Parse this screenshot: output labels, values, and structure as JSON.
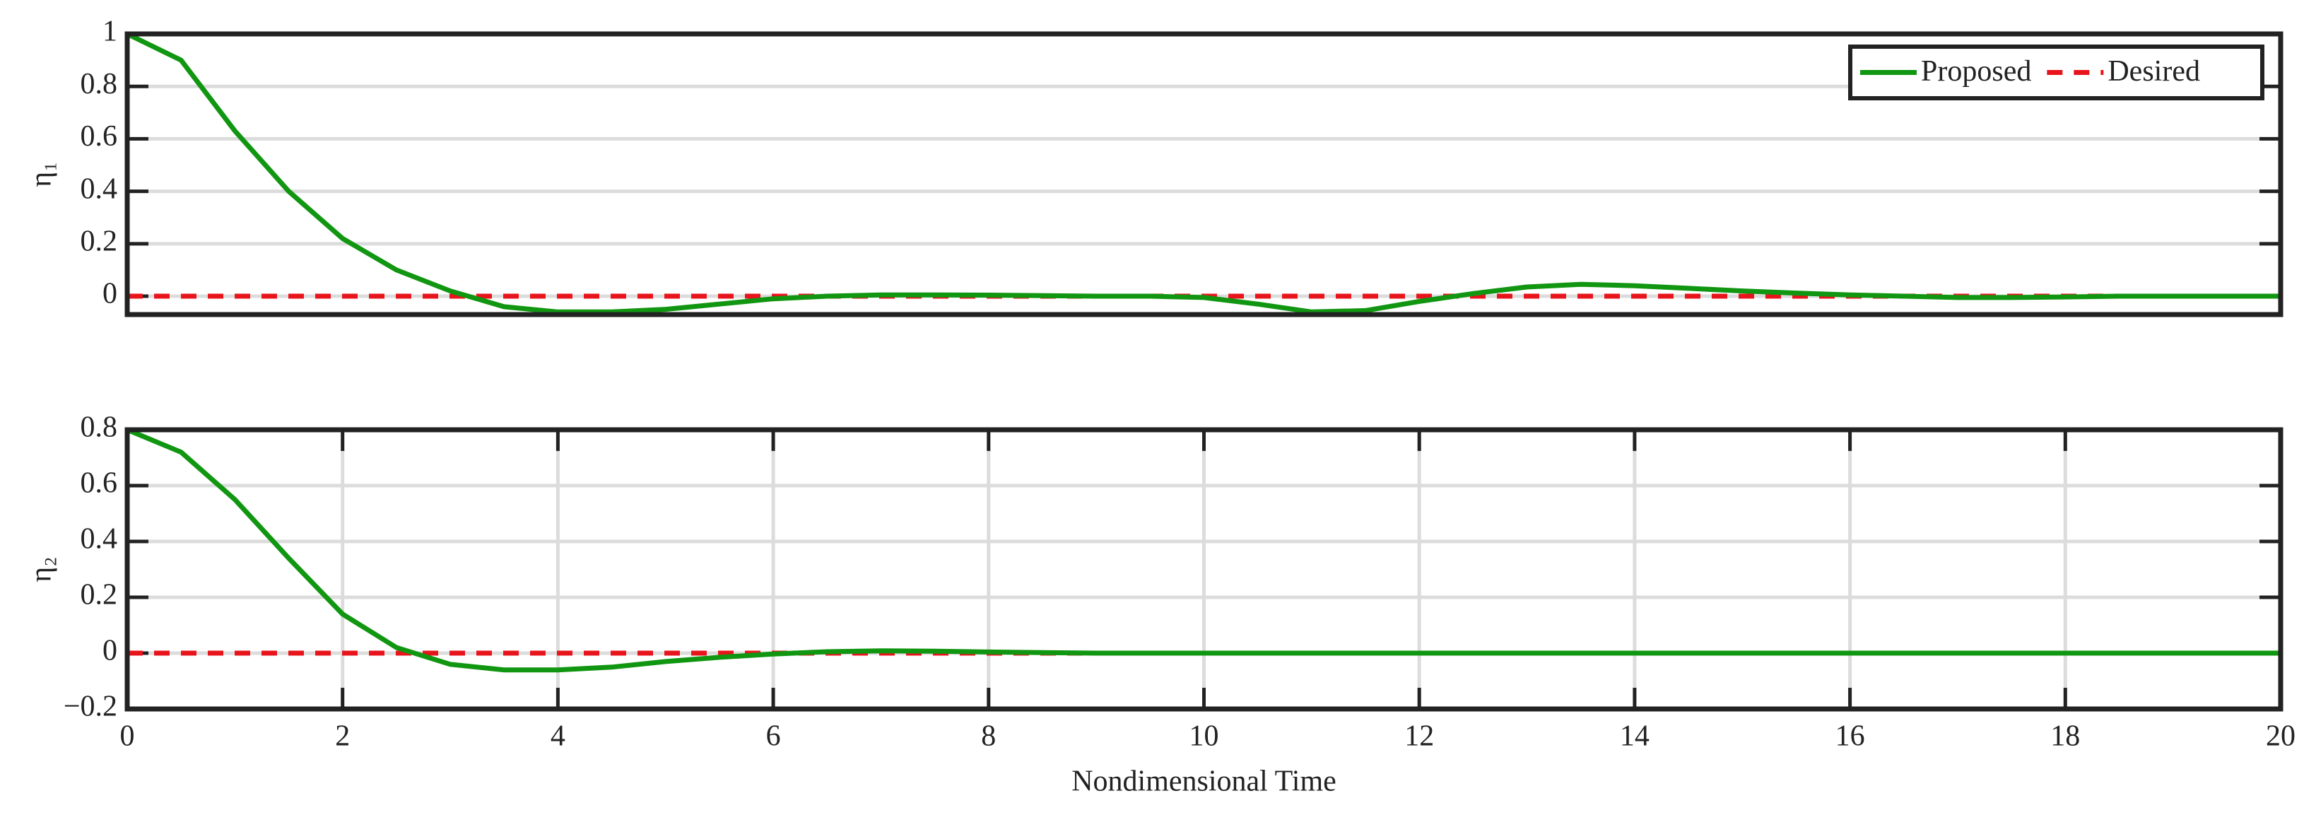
{
  "chart_data": [
    {
      "type": "line",
      "ylabel": "η₁",
      "xlim": [
        0,
        20
      ],
      "ylim": [
        -0.07,
        1
      ],
      "yticks": [
        0,
        0.2,
        0.4,
        0.6,
        0.8,
        1
      ],
      "grid": "y",
      "legend": "upper right",
      "x": [
        0,
        0.5,
        1,
        1.5,
        2,
        2.5,
        3,
        3.5,
        4,
        4.5,
        5,
        5.5,
        6,
        6.5,
        7,
        7.5,
        8,
        8.5,
        9,
        9.5,
        10,
        10.5,
        11,
        11.5,
        12,
        12.5,
        13,
        13.5,
        14,
        14.5,
        15,
        15.5,
        16,
        16.5,
        17,
        17.5,
        18,
        18.5,
        19,
        19.5,
        20
      ],
      "series": [
        {
          "name": "Proposed",
          "color": "#119611",
          "dash": false,
          "values": [
            1,
            0.9,
            0.63,
            0.4,
            0.22,
            0.1,
            0.02,
            -0.04,
            -0.06,
            -0.06,
            -0.05,
            -0.03,
            -0.01,
            0,
            0.005,
            0.005,
            0.004,
            0.002,
            0,
            0,
            -0.005,
            -0.03,
            -0.06,
            -0.055,
            -0.02,
            0.01,
            0.035,
            0.045,
            0.04,
            0.03,
            0.02,
            0.012,
            0.005,
            0,
            -0.005,
            -0.005,
            -0.003,
            0,
            0,
            0,
            0
          ]
        },
        {
          "name": "Desired",
          "color": "#e8141c",
          "dash": true,
          "values": [
            0,
            0,
            0,
            0,
            0,
            0,
            0,
            0,
            0,
            0,
            0,
            0,
            0,
            0,
            0,
            0,
            0,
            0,
            0,
            0,
            0,
            0,
            0,
            0,
            0,
            0,
            0,
            0,
            0,
            0,
            0,
            0,
            0,
            0,
            0,
            0,
            0,
            0,
            0,
            0,
            0
          ]
        }
      ]
    },
    {
      "type": "line",
      "ylabel": "η₂",
      "xlabel": "Nondimensional Time",
      "xlim": [
        0,
        20
      ],
      "xticks": [
        0,
        2,
        4,
        6,
        8,
        10,
        12,
        14,
        16,
        18,
        20
      ],
      "ylim": [
        -0.2,
        0.8
      ],
      "yticks": [
        {
          "value": -0.2,
          "label": "−0.2"
        },
        0,
        0.2,
        0.4,
        0.6,
        0.8
      ],
      "grid": "xy",
      "x": [
        0,
        0.5,
        1,
        1.5,
        2,
        2.5,
        3,
        3.5,
        4,
        4.5,
        5,
        5.5,
        6,
        6.5,
        7,
        7.5,
        8,
        8.5,
        9,
        9.5,
        10,
        10.5,
        11,
        11.5,
        12,
        12.5,
        13,
        13.5,
        14,
        14.5,
        15,
        15.5,
        16,
        16.5,
        17,
        17.5,
        18,
        18.5,
        19,
        19.5,
        20
      ],
      "series": [
        {
          "color": "#119611",
          "dash": false,
          "values": [
            0.8,
            0.72,
            0.55,
            0.34,
            0.14,
            0.02,
            -0.04,
            -0.06,
            -0.06,
            -0.05,
            -0.03,
            -0.015,
            -0.003,
            0.005,
            0.008,
            0.007,
            0.004,
            0.002,
            0,
            0,
            0,
            0,
            0,
            0,
            0,
            0,
            0,
            0,
            0,
            0,
            0,
            0,
            0,
            0,
            0,
            0,
            0,
            0,
            0,
            0,
            0
          ]
        },
        {
          "color": "#e8141c",
          "dash": true,
          "values": [
            0,
            0,
            0,
            0,
            0,
            0,
            0,
            0,
            0,
            0,
            0,
            0,
            0,
            0,
            0,
            0,
            0,
            0,
            0,
            0,
            0,
            0,
            0,
            0,
            0,
            0,
            0,
            0,
            0,
            0,
            0,
            0,
            0,
            0,
            0,
            0,
            0,
            0,
            0,
            0,
            0
          ]
        }
      ]
    }
  ]
}
